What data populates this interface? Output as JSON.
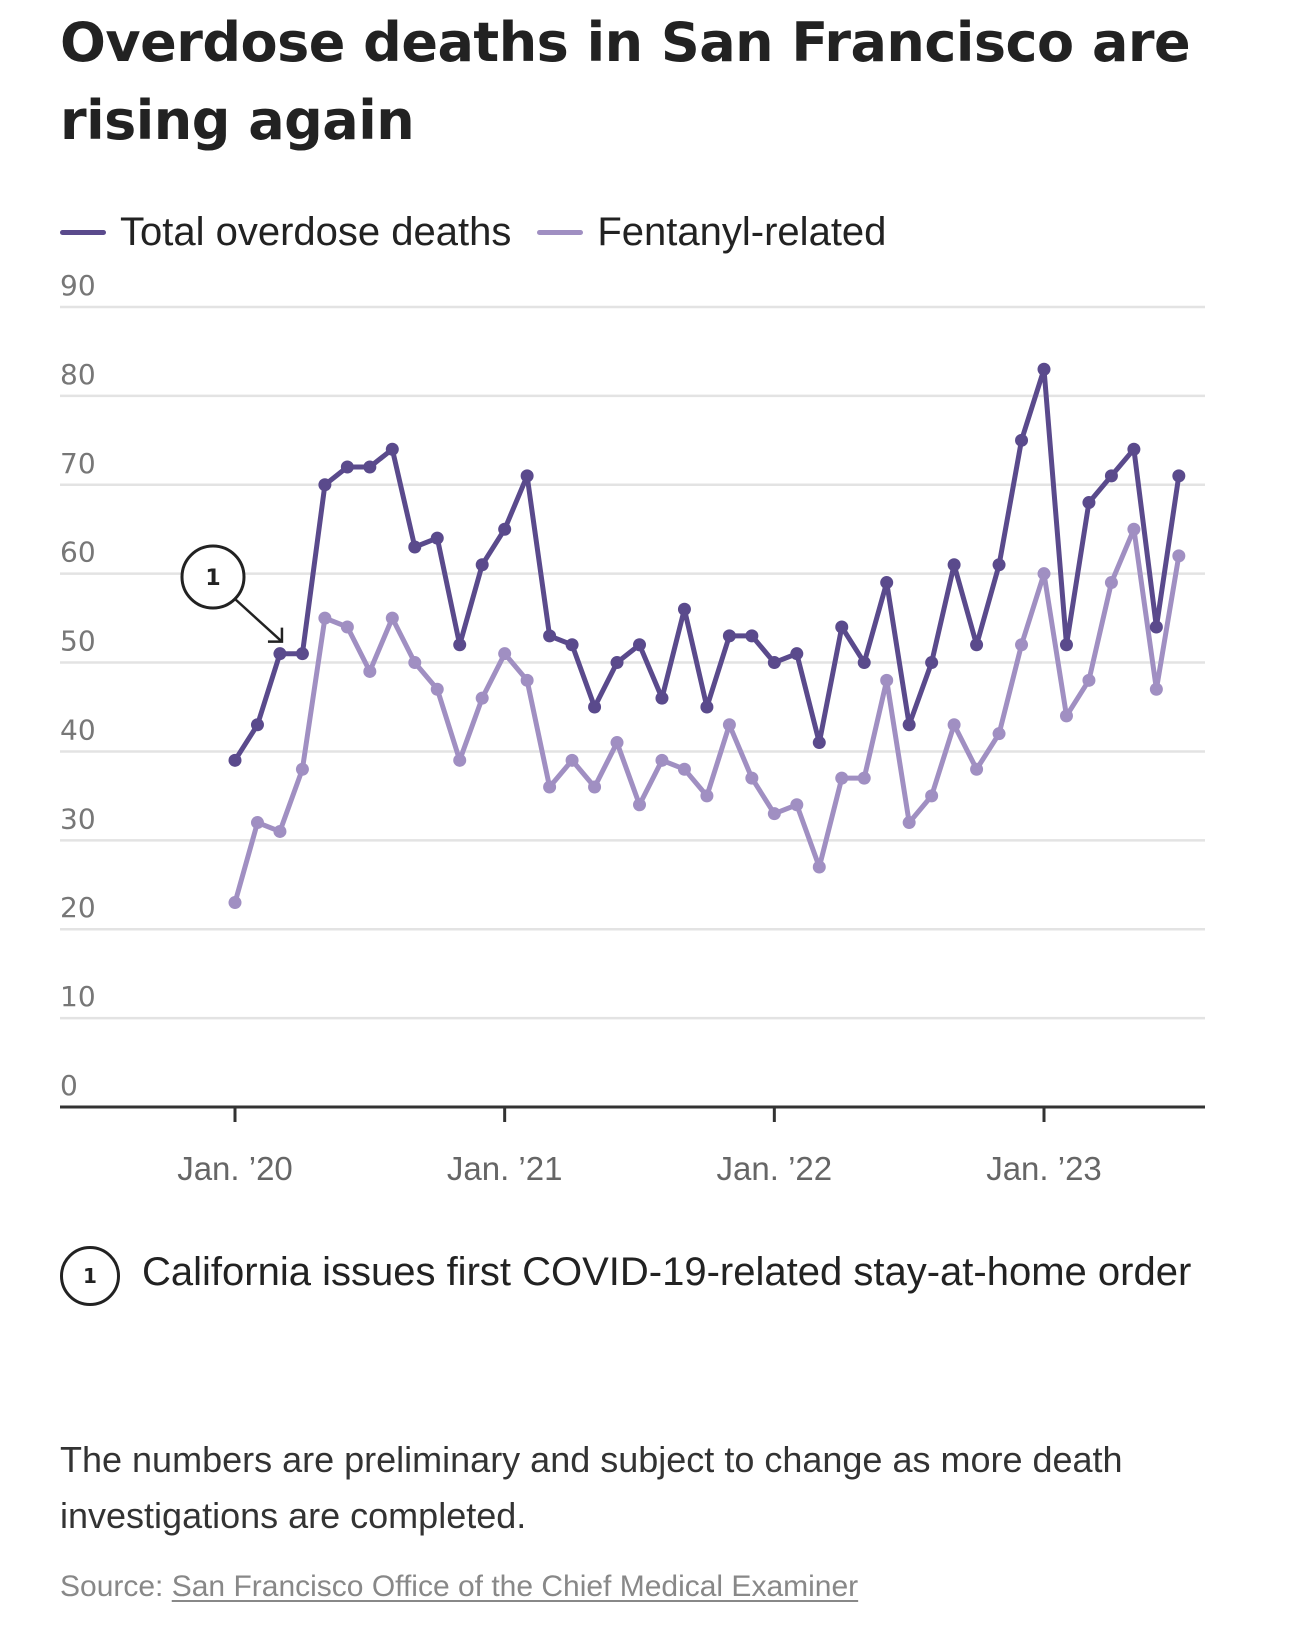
{
  "title": "Overdose deaths in San Francisco are rising again",
  "legend": [
    {
      "label": "Total overdose deaths",
      "color": "#5a4a8c"
    },
    {
      "label": "Fentanyl-related",
      "color": "#a08fc2"
    }
  ],
  "annotation": {
    "number": "1",
    "text": "California issues first COVID-19-related stay-at-home order",
    "points_to": "2020-03"
  },
  "footnote": "The numbers are preliminary and subject to change as more death investigations are completed.",
  "source": {
    "prefix": "Source: ",
    "link_text": "San Francisco Office of the Chief Medical Examiner"
  },
  "chart_data": {
    "type": "line",
    "title": "Overdose deaths in San Francisco are rising again",
    "xlabel": "",
    "ylabel": "",
    "ylim": [
      0,
      90
    ],
    "yticks": [
      0,
      10,
      20,
      30,
      40,
      50,
      60,
      70,
      80,
      90
    ],
    "grid": true,
    "legend_position": "top-left",
    "x_start": "2020-01",
    "x_tick_labels": [
      {
        "month_index": 0,
        "label": "Jan. ’20"
      },
      {
        "month_index": 12,
        "label": "Jan. ’21"
      },
      {
        "month_index": 24,
        "label": "Jan. ’22"
      },
      {
        "month_index": 36,
        "label": "Jan. ’23"
      }
    ],
    "x": [
      "2020-01",
      "2020-02",
      "2020-03",
      "2020-04",
      "2020-05",
      "2020-06",
      "2020-07",
      "2020-08",
      "2020-09",
      "2020-10",
      "2020-11",
      "2020-12",
      "2021-01",
      "2021-02",
      "2021-03",
      "2021-04",
      "2021-05",
      "2021-06",
      "2021-07",
      "2021-08",
      "2021-09",
      "2021-10",
      "2021-11",
      "2021-12",
      "2022-01",
      "2022-02",
      "2022-03",
      "2022-04",
      "2022-05",
      "2022-06",
      "2022-07",
      "2022-08",
      "2022-09",
      "2022-10",
      "2022-11",
      "2022-12",
      "2023-01",
      "2023-02",
      "2023-03",
      "2023-04",
      "2023-05",
      "2023-06",
      "2023-07"
    ],
    "series": [
      {
        "name": "Total overdose deaths",
        "color": "#5a4a8c",
        "values": [
          39,
          43,
          51,
          51,
          70,
          72,
          72,
          74,
          63,
          64,
          52,
          61,
          65,
          71,
          53,
          52,
          45,
          50,
          52,
          46,
          56,
          45,
          53,
          53,
          50,
          51,
          41,
          54,
          50,
          59,
          43,
          50,
          61,
          52,
          61,
          75,
          83,
          52,
          68,
          71,
          74,
          54,
          71
        ]
      },
      {
        "name": "Fentanyl-related",
        "color": "#a08fc2",
        "values": [
          23,
          32,
          31,
          38,
          55,
          54,
          49,
          55,
          50,
          47,
          39,
          46,
          51,
          48,
          36,
          39,
          36,
          41,
          34,
          39,
          38,
          35,
          43,
          37,
          33,
          34,
          27,
          37,
          37,
          48,
          32,
          35,
          43,
          38,
          42,
          52,
          60,
          44,
          48,
          59,
          65,
          47,
          62
        ]
      }
    ],
    "annotations": [
      {
        "label": "1",
        "month_index": 2
      }
    ]
  }
}
